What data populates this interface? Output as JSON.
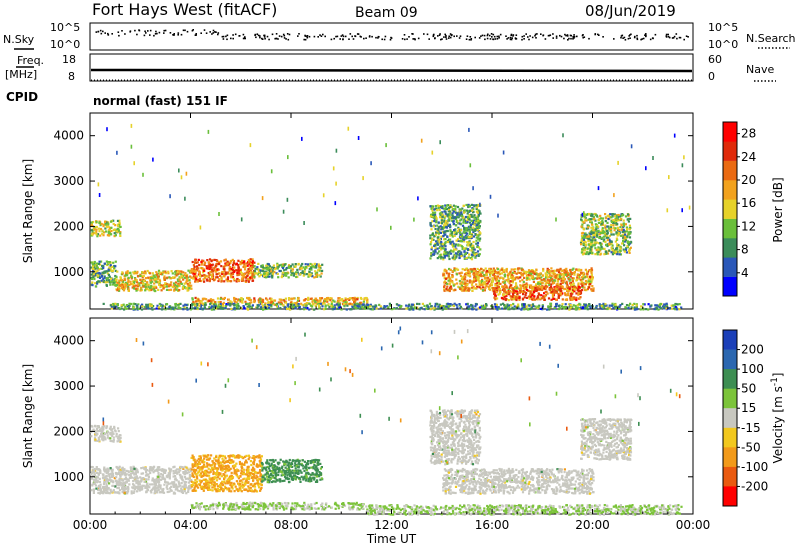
{
  "header": {
    "station": "Fort Hays West (fitACF)",
    "beam": "Beam 09",
    "date": "08/Jun/2019"
  },
  "side_labels": {
    "nsky": "N.Sky",
    "freq": "Freq.",
    "freq_unit": "[MHz]",
    "cpid": "CPID",
    "nsearch": "N.Search",
    "nave": "Nave",
    "nsky_tick_top": "10^5",
    "nsky_tick_bottom": "10^0",
    "freq_tick_top": "18",
    "freq_tick_bottom": "8",
    "nave_tick_top": "60",
    "nave_tick_bottom": "0"
  },
  "cpid_text": "normal (fast) 151 IF",
  "colors": {
    "power_scale": [
      "#0000ff",
      "#2a57b8",
      "#3b8c5a",
      "#6abf3a",
      "#e6d22a",
      "#f2a21e",
      "#ea6a12",
      "#e02a0a",
      "#ff0000"
    ],
    "velocity_scale": [
      "#1b3fb8",
      "#2b67b0",
      "#3d8e52",
      "#7cc43a",
      "#c8c8c0",
      "#f2c81e",
      "#f29a1a",
      "#ea5a10",
      "#ff0000"
    ],
    "ground_scatter": "#c8c8c0"
  },
  "chart_data": [
    {
      "type": "heatmap",
      "title": "",
      "xlabel": "",
      "ylabel": "Slant Range [km]",
      "xlim": [
        0,
        24
      ],
      "ylim": [
        180,
        4500
      ],
      "x_tick_labels": [
        "00:00",
        "04:00",
        "08:00",
        "12:00",
        "16:00",
        "20:00",
        "00:00"
      ],
      "y_ticks": [
        1000,
        2000,
        3000,
        4000
      ],
      "colorbar": {
        "label": "Power [dB]",
        "ticks": [
          4,
          8,
          12,
          16,
          20,
          24,
          28
        ],
        "range": [
          0,
          30
        ]
      },
      "regions": [
        {
          "t": [
            0.0,
            1.2
          ],
          "range": [
            1800,
            2150
          ],
          "value": 14
        },
        {
          "t": [
            0.0,
            1.0
          ],
          "range": [
            700,
            1250
          ],
          "value": 10
        },
        {
          "t": [
            1.0,
            4.0
          ],
          "range": [
            600,
            1050
          ],
          "value": 16
        },
        {
          "t": [
            4.0,
            6.5
          ],
          "range": [
            800,
            1300
          ],
          "value": 22
        },
        {
          "t": [
            6.5,
            9.2
          ],
          "range": [
            900,
            1200
          ],
          "value": 12
        },
        {
          "t": [
            4.0,
            11.0
          ],
          "range": [
            300,
            450
          ],
          "value": 18
        },
        {
          "t": [
            14.0,
            20.0
          ],
          "range": [
            600,
            1100
          ],
          "value": 18
        },
        {
          "t": [
            16.0,
            19.5
          ],
          "range": [
            400,
            700
          ],
          "value": 22
        },
        {
          "t": [
            13.5,
            15.5
          ],
          "range": [
            1300,
            2500
          ],
          "value": 10
        },
        {
          "t": [
            19.5,
            21.5
          ],
          "range": [
            1400,
            2300
          ],
          "value": 12
        },
        {
          "t": [
            0.5,
            23.5
          ],
          "range": [
            190,
            320
          ],
          "value": 9
        }
      ]
    },
    {
      "type": "heatmap",
      "title": "",
      "xlabel": "Time UT",
      "ylabel": "Slant Range [km]",
      "xlim": [
        0,
        24
      ],
      "ylim": [
        180,
        4500
      ],
      "x_tick_labels": [
        "00:00",
        "04:00",
        "08:00",
        "12:00",
        "16:00",
        "20:00",
        "00:00"
      ],
      "y_ticks": [
        1000,
        2000,
        3000,
        4000
      ],
      "colorbar": {
        "label": "Velocity [m s^-1]",
        "ticks": [
          200,
          100,
          50,
          15,
          -15,
          -50,
          -100,
          -200
        ]
      },
      "regions": [
        {
          "t": [
            0.0,
            1.2
          ],
          "range": [
            1800,
            2150
          ],
          "value": 0,
          "ground_scatter": true
        },
        {
          "t": [
            0.0,
            4.0
          ],
          "range": [
            650,
            1250
          ],
          "value": 0,
          "ground_scatter": true
        },
        {
          "t": [
            4.0,
            6.8
          ],
          "range": [
            700,
            1500
          ],
          "value": -60
        },
        {
          "t": [
            6.8,
            9.2
          ],
          "range": [
            900,
            1400
          ],
          "value": 70
        },
        {
          "t": [
            4.0,
            11.0
          ],
          "range": [
            300,
            450
          ],
          "value": 20
        },
        {
          "t": [
            11.0,
            23.5
          ],
          "range": [
            190,
            400
          ],
          "value": 20
        },
        {
          "t": [
            14.0,
            20.0
          ],
          "range": [
            650,
            1200
          ],
          "value": 0,
          "ground_scatter": true
        },
        {
          "t": [
            13.5,
            15.5
          ],
          "range": [
            1300,
            2500
          ],
          "value": 0,
          "ground_scatter": true
        },
        {
          "t": [
            19.5,
            21.5
          ],
          "range": [
            1400,
            2300
          ],
          "value": 0,
          "ground_scatter": true
        }
      ]
    }
  ]
}
